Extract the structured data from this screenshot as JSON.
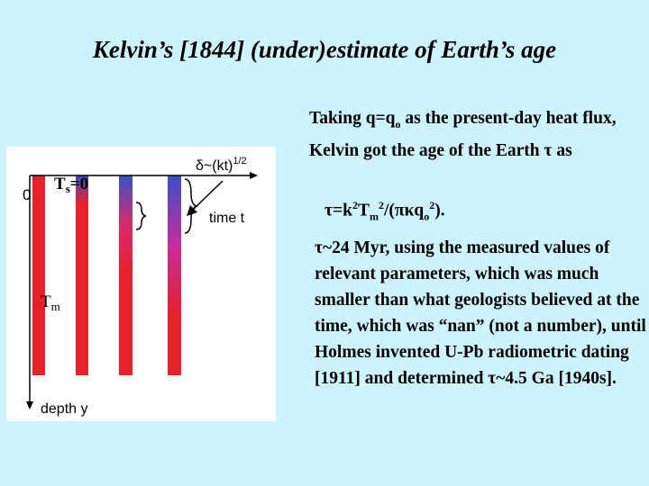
{
  "title": "Kelvin’s [1844] (under)estimate of Earth’s age",
  "figure": {
    "origin": "0",
    "surface_temp": [
      "T",
      "s",
      "=0"
    ],
    "boundary_layer": [
      "δ~(kt)",
      "1/2"
    ],
    "time_axis": "time t",
    "mantle_temp": [
      "T",
      "m"
    ],
    "depth_axis": "depth y"
  },
  "paragraph1": [
    "Taking q=q",
    "o",
    " as the present-day heat flux, Kelvin got the age of the Earth τ as"
  ],
  "formula": [
    "τ=k",
    "2",
    "T",
    "m",
    "2",
    "/(πκq",
    "o",
    "2",
    ")."
  ],
  "paragraph2": "τ~24 Myr, using the measured values of relevant parameters, which was much smaller than what geologists believed at the time, which was “nan” (not a number), until Holmes invented U-Pb radiometric dating [1911] and determined τ~4.5 Ga [1940s]."
}
